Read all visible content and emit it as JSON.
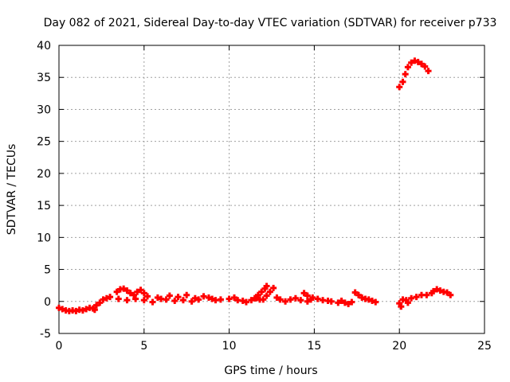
{
  "chart_data": {
    "type": "scatter",
    "title": "Day 082 of 2021, Sidereal Day-to-day VTEC variation (SDTVAR) for receiver p733",
    "xlabel": "GPS time / hours",
    "ylabel": "SDTVAR / TECUs",
    "xlim": [
      0,
      25
    ],
    "ylim": [
      -5,
      40
    ],
    "xticks": [
      0,
      5,
      10,
      15,
      20,
      25
    ],
    "yticks": [
      -5,
      0,
      5,
      10,
      15,
      20,
      25,
      30,
      35,
      40
    ],
    "grid": true,
    "marker": "+",
    "series": [
      {
        "name": "SDTVAR",
        "color": "#ff0000",
        "points": [
          [
            0.0,
            -1.0
          ],
          [
            0.2,
            -1.2
          ],
          [
            0.4,
            -1.4
          ],
          [
            0.6,
            -1.5
          ],
          [
            0.8,
            -1.4
          ],
          [
            1.0,
            -1.5
          ],
          [
            1.2,
            -1.3
          ],
          [
            1.4,
            -1.4
          ],
          [
            1.6,
            -1.2
          ],
          [
            1.8,
            -1.0
          ],
          [
            2.0,
            -1.1
          ],
          [
            2.1,
            -1.3
          ],
          [
            2.2,
            -0.6
          ],
          [
            2.4,
            -0.2
          ],
          [
            2.6,
            0.3
          ],
          [
            2.8,
            0.5
          ],
          [
            3.0,
            0.7
          ],
          [
            3.4,
            1.5
          ],
          [
            3.6,
            1.9
          ],
          [
            3.8,
            2.0
          ],
          [
            4.0,
            1.7
          ],
          [
            4.2,
            1.3
          ],
          [
            4.4,
            1.0
          ],
          [
            4.6,
            1.5
          ],
          [
            4.8,
            1.8
          ],
          [
            5.0,
            1.3
          ],
          [
            3.5,
            0.4
          ],
          [
            4.0,
            0.2
          ],
          [
            4.5,
            0.4
          ],
          [
            5.0,
            0.2
          ],
          [
            5.5,
            -0.1
          ],
          [
            6.0,
            0.4
          ],
          [
            6.5,
            0.9
          ],
          [
            7.0,
            0.7
          ],
          [
            7.5,
            1.0
          ],
          [
            8.0,
            0.5
          ],
          [
            5.2,
            0.8
          ],
          [
            5.8,
            0.6
          ],
          [
            6.3,
            0.3
          ],
          [
            6.8,
            0.1
          ],
          [
            7.3,
            0.2
          ],
          [
            7.8,
            0.0
          ],
          [
            8.2,
            0.3
          ],
          [
            8.5,
            0.8
          ],
          [
            8.8,
            0.6
          ],
          [
            9.0,
            0.4
          ],
          [
            9.2,
            0.2
          ],
          [
            9.5,
            0.3
          ],
          [
            10.0,
            0.4
          ],
          [
            10.3,
            0.6
          ],
          [
            10.5,
            0.2
          ],
          [
            10.8,
            0.1
          ],
          [
            11.0,
            -0.1
          ],
          [
            11.3,
            0.2
          ],
          [
            11.6,
            0.5
          ],
          [
            11.8,
            0.3
          ],
          [
            11.5,
            0.5
          ],
          [
            11.7,
            1.0
          ],
          [
            11.9,
            1.5
          ],
          [
            12.1,
            2.0
          ],
          [
            12.2,
            2.4
          ],
          [
            12.0,
            0.3
          ],
          [
            12.2,
            0.9
          ],
          [
            12.4,
            1.5
          ],
          [
            12.6,
            2.1
          ],
          [
            12.8,
            0.6
          ],
          [
            13.0,
            0.3
          ],
          [
            13.3,
            0.0
          ],
          [
            13.6,
            0.3
          ],
          [
            13.9,
            0.5
          ],
          [
            14.2,
            0.2
          ],
          [
            14.6,
            0.0
          ],
          [
            14.8,
            0.3
          ],
          [
            14.4,
            1.3
          ],
          [
            14.6,
            0.9
          ],
          [
            14.9,
            0.6
          ],
          [
            15.2,
            0.4
          ],
          [
            15.5,
            0.2
          ],
          [
            15.8,
            0.1
          ],
          [
            16.0,
            0.0
          ],
          [
            16.4,
            -0.2
          ],
          [
            16.6,
            0.1
          ],
          [
            16.8,
            -0.2
          ],
          [
            17.0,
            -0.4
          ],
          [
            17.2,
            -0.1
          ],
          [
            17.4,
            1.4
          ],
          [
            17.6,
            1.0
          ],
          [
            17.8,
            0.6
          ],
          [
            18.0,
            0.4
          ],
          [
            18.2,
            0.3
          ],
          [
            18.4,
            0.1
          ],
          [
            18.6,
            -0.1
          ],
          [
            20.0,
            -0.3
          ],
          [
            20.1,
            -0.8
          ],
          [
            20.2,
            0.3
          ],
          [
            20.4,
            0.2
          ],
          [
            20.5,
            -0.2
          ],
          [
            20.7,
            0.5
          ],
          [
            21.0,
            0.7
          ],
          [
            21.3,
            1.0
          ],
          [
            21.6,
            1.0
          ],
          [
            21.9,
            1.3
          ],
          [
            22.0,
            1.6
          ],
          [
            22.2,
            1.9
          ],
          [
            22.4,
            1.7
          ],
          [
            22.6,
            1.5
          ],
          [
            22.8,
            1.4
          ],
          [
            23.0,
            1.0
          ],
          [
            20.0,
            33.5
          ],
          [
            20.2,
            34.3
          ],
          [
            20.35,
            35.5
          ],
          [
            20.5,
            36.6
          ],
          [
            20.7,
            37.3
          ],
          [
            20.9,
            37.6
          ],
          [
            21.1,
            37.4
          ],
          [
            21.3,
            37.1
          ],
          [
            21.5,
            36.7
          ],
          [
            21.7,
            36.0
          ]
        ]
      }
    ]
  }
}
